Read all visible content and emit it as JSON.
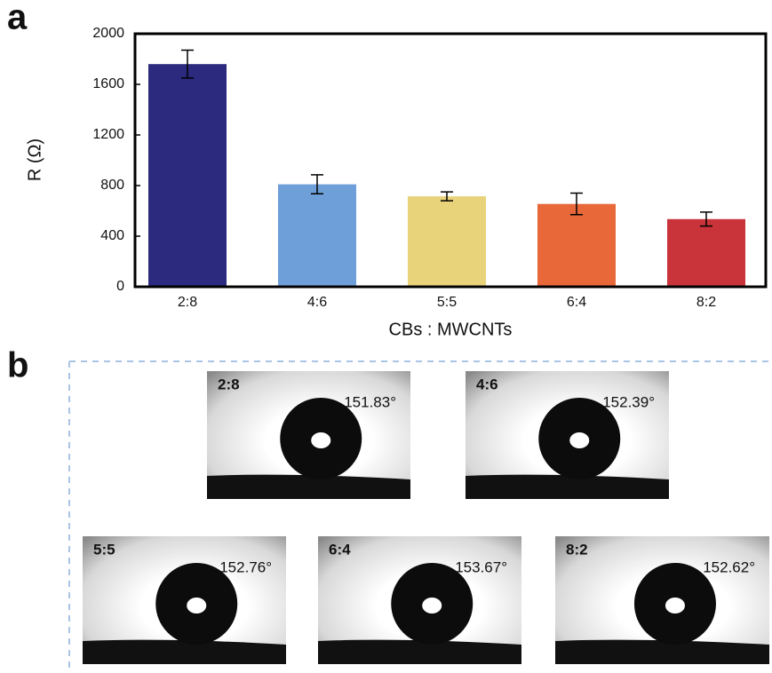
{
  "panel_labels": [
    "a",
    "b"
  ],
  "chart_data": {
    "type": "bar",
    "ylabel": "R (Ω)",
    "xlabel": "CBs : MWCNTs",
    "categories": [
      "2:8",
      "4:6",
      "5:5",
      "6:4",
      "8:2"
    ],
    "values": [
      1760,
      810,
      715,
      655,
      535
    ],
    "errors": [
      110,
      75,
      35,
      85,
      55
    ],
    "colors": [
      "#2b2a7e",
      "#6f9fd8",
      "#e8d27a",
      "#e8683a",
      "#c8343a"
    ],
    "ylim": [
      0,
      2000
    ],
    "yticks": [
      0,
      400,
      800,
      1200,
      1600,
      2000
    ]
  },
  "contact_angle_images": [
    {
      "label": "2:8",
      "angle": "151.83°"
    },
    {
      "label": "4:6",
      "angle": "152.39°"
    },
    {
      "label": "5:5",
      "angle": "152.76°"
    },
    {
      "label": "6:4",
      "angle": "153.67°"
    },
    {
      "label": "8:2",
      "angle": "152.62°"
    }
  ]
}
